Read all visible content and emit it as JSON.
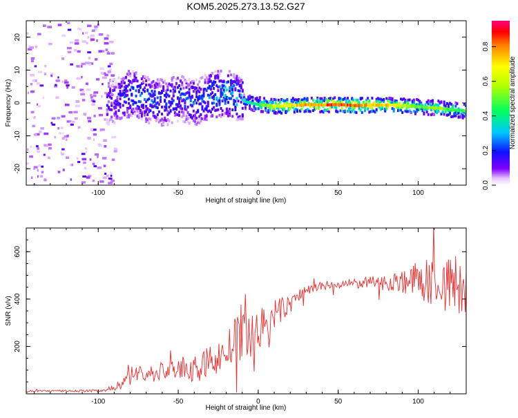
{
  "title": "KOM5.2025.273.13.52.G27",
  "colors": {
    "snr_line": "#ee2a2a",
    "frame": "#000000"
  },
  "chart_data": [
    {
      "type": "heatmap",
      "title": "KOM5.2025.273.13.52.G27",
      "xlabel": "Height of straight line (km)",
      "ylabel": "Frequency (Hz)",
      "xlim": [
        -145,
        130
      ],
      "ylim": [
        -25,
        25
      ],
      "x_ticks": [
        -100,
        -50,
        0,
        50,
        100
      ],
      "x_tick_labels": [
        "-100",
        "-50",
        "0",
        "50",
        "100"
      ],
      "y_ticks": [
        -20,
        -10,
        0,
        10,
        20
      ],
      "y_tick_labels": [
        "-20",
        "-10",
        "0",
        "10",
        "20"
      ],
      "colorbar": {
        "label": "Normalized spectral amplitude",
        "range": [
          0.0,
          0.95
        ],
        "ticks": [
          0.0,
          0.2,
          0.4,
          0.6,
          0.8
        ],
        "tick_labels": [
          "0.0",
          "0.2",
          "0.4",
          "0.6",
          "0.8"
        ]
      },
      "ridge": [
        {
          "x": -90,
          "f": 0.5,
          "amp": 0.18
        },
        {
          "x": -80,
          "f": 3.0,
          "amp": 0.3
        },
        {
          "x": -70,
          "f": 1.0,
          "amp": 0.28
        },
        {
          "x": -60,
          "f": 0.0,
          "amp": 0.25
        },
        {
          "x": -50,
          "f": 1.5,
          "amp": 0.25
        },
        {
          "x": -40,
          "f": 0.0,
          "amp": 0.28
        },
        {
          "x": -30,
          "f": 2.5,
          "amp": 0.3
        },
        {
          "x": -20,
          "f": 3.0,
          "amp": 0.38
        },
        {
          "x": -10,
          "f": 0.5,
          "amp": 0.35
        },
        {
          "x": 0,
          "f": -0.5,
          "amp": 0.5
        },
        {
          "x": 10,
          "f": -1.0,
          "amp": 0.7
        },
        {
          "x": 20,
          "f": -0.8,
          "amp": 0.8
        },
        {
          "x": 30,
          "f": -0.5,
          "amp": 0.85
        },
        {
          "x": 40,
          "f": -0.6,
          "amp": 0.9
        },
        {
          "x": 50,
          "f": -0.5,
          "amp": 0.92
        },
        {
          "x": 60,
          "f": -0.8,
          "amp": 0.88
        },
        {
          "x": 70,
          "f": -0.7,
          "amp": 0.85
        },
        {
          "x": 80,
          "f": -0.6,
          "amp": 0.8
        },
        {
          "x": 90,
          "f": -0.8,
          "amp": 0.7
        },
        {
          "x": 100,
          "f": -1.2,
          "amp": 0.55
        },
        {
          "x": 110,
          "f": -1.5,
          "amp": 0.6
        },
        {
          "x": 120,
          "f": -2.0,
          "amp": 0.55
        },
        {
          "x": 130,
          "f": -2.5,
          "amp": 0.5
        }
      ]
    },
    {
      "type": "line",
      "xlabel": "Height of straight line (km)",
      "ylabel": "SNR (v/v)",
      "xlim": [
        -145,
        130
      ],
      "ylim": [
        0,
        700
      ],
      "x_ticks": [
        -100,
        -50,
        0,
        50,
        100
      ],
      "x_tick_labels": [
        "-100",
        "-50",
        "0",
        "50",
        "100"
      ],
      "y_ticks": [
        200,
        400,
        600
      ],
      "y_tick_labels": [
        "200",
        "400",
        "600"
      ],
      "series": [
        {
          "name": "SNR",
          "x": [
            -145,
            -120,
            -100,
            -92,
            -85,
            -80,
            -75,
            -70,
            -60,
            -50,
            -45,
            -40,
            -30,
            -20,
            -15,
            -10,
            0,
            5,
            10,
            20,
            25,
            30,
            40,
            50,
            60,
            70,
            80,
            90,
            100,
            110,
            120,
            130
          ],
          "mean": [
            12,
            12,
            13,
            20,
            45,
            75,
            90,
            80,
            95,
            110,
            100,
            105,
            140,
            170,
            220,
            240,
            270,
            290,
            330,
            380,
            410,
            440,
            455,
            460,
            465,
            470,
            470,
            475,
            480,
            470,
            460,
            450
          ],
          "noise": [
            4,
            4,
            5,
            10,
            25,
            40,
            45,
            35,
            45,
            55,
            50,
            50,
            65,
            80,
            100,
            100,
            90,
            90,
            70,
            40,
            30,
            25,
            20,
            20,
            22,
            25,
            35,
            50,
            80,
            110,
            130,
            140
          ]
        }
      ]
    }
  ]
}
